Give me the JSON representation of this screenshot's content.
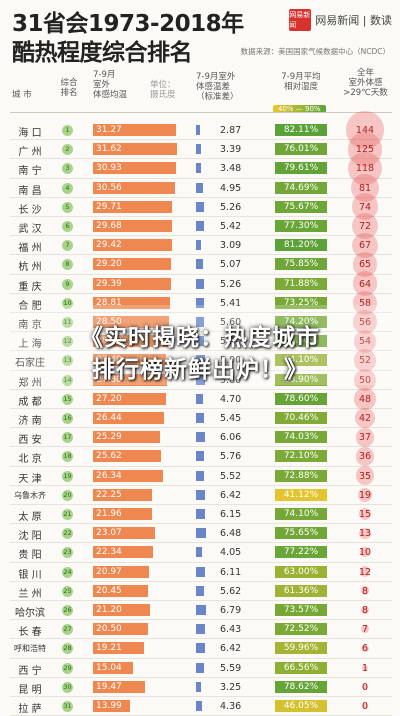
{
  "title_line1": "31省会1973-2018年",
  "title_line2": "酷热程度综合排名",
  "brand": {
    "logo_text": "网易新闻",
    "name": "网易新闻 | 数读"
  },
  "source": "数据来源：美国国家气候数据中心（NCDC）",
  "headers": {
    "city": "城 市",
    "rank": "综合\n排名",
    "temp": "7-9月\n室外\n体感均温",
    "unit": "单位：\n摄氏度",
    "sd": "7-9月室外\n体感温差\n（标准差）",
    "humidity": "7-9月平均\n相对湿度",
    "humidity_range": "40% — 90%",
    "days": "全年\n室外体感\n>29℃天数"
  },
  "colors": {
    "temp_bar": "#ee8850",
    "sd_bar": "#6a86c8",
    "humidity_low": "#e8c62f",
    "humidity_high": "#3f9a3a",
    "days_circle": "#e85a5a"
  },
  "banner": {
    "line1": "《实时揭晓：热度城市",
    "line2": "排行榜新鲜出炉！》"
  },
  "chart_data": {
    "type": "table",
    "columns": [
      "city",
      "rank",
      "feels_like_temp_c",
      "temp_std_dev",
      "relative_humidity_pct",
      "days_over_29c"
    ],
    "rows": [
      [
        "海 口",
        1,
        31.27,
        2.87,
        82.11,
        144
      ],
      [
        "广 州",
        2,
        31.62,
        3.39,
        76.01,
        125
      ],
      [
        "南 宁",
        3,
        30.93,
        3.48,
        79.61,
        118
      ],
      [
        "南 昌",
        4,
        30.56,
        4.95,
        74.69,
        81
      ],
      [
        "长 沙",
        5,
        29.71,
        5.26,
        75.67,
        74
      ],
      [
        "武 汉",
        6,
        29.68,
        5.42,
        77.3,
        72
      ],
      [
        "福 州",
        7,
        29.42,
        3.09,
        81.2,
        67
      ],
      [
        "杭 州",
        8,
        29.2,
        5.07,
        75.85,
        65
      ],
      [
        "重 庆",
        9,
        29.39,
        5.26,
        71.88,
        64
      ],
      [
        "合 肥",
        10,
        28.81,
        5.41,
        73.25,
        58
      ],
      [
        "南 京",
        11,
        28.5,
        5.6,
        74.2,
        56
      ],
      [
        "上 海",
        12,
        28.3,
        5.2,
        76.5,
        54
      ],
      [
        "石家庄",
        13,
        27.4,
        5.9,
        64.1,
        52
      ],
      [
        "郑 州",
        14,
        27.8,
        5.8,
        68.9,
        50
      ],
      [
        "成 都",
        15,
        27.2,
        4.7,
        78.6,
        48
      ],
      [
        "济 南",
        16,
        26.44,
        5.45,
        70.46,
        42
      ],
      [
        "西 安",
        17,
        25.29,
        6.06,
        74.03,
        37
      ],
      [
        "北 京",
        18,
        25.62,
        5.76,
        72.1,
        36
      ],
      [
        "天 津",
        19,
        26.34,
        5.52,
        72.88,
        35
      ],
      [
        "乌鲁木齐",
        20,
        22.25,
        6.42,
        41.12,
        19
      ],
      [
        "太 原",
        21,
        21.96,
        6.15,
        74.1,
        15
      ],
      [
        "沈 阳",
        22,
        23.07,
        6.48,
        75.65,
        13
      ],
      [
        "贵 阳",
        23,
        22.34,
        4.05,
        77.22,
        10
      ],
      [
        "银 川",
        24,
        20.97,
        6.11,
        63.0,
        12
      ],
      [
        "兰 州",
        25,
        20.45,
        5.62,
        61.36,
        8
      ],
      [
        "哈尔滨",
        26,
        21.2,
        6.79,
        73.57,
        8
      ],
      [
        "长 春",
        27,
        20.5,
        6.43,
        72.52,
        7
      ],
      [
        "呼和浩特",
        28,
        19.21,
        6.42,
        59.96,
        6
      ],
      [
        "西 宁",
        29,
        15.04,
        5.59,
        66.56,
        1
      ],
      [
        "昆 明",
        30,
        19.47,
        3.25,
        78.62,
        0
      ],
      [
        "拉 萨",
        31,
        13.99,
        4.36,
        46.05,
        0
      ]
    ],
    "temp_axis": [
      0,
      33
    ],
    "sd_axis": [
      0,
      8
    ],
    "humidity_range": [
      40,
      90
    ]
  }
}
